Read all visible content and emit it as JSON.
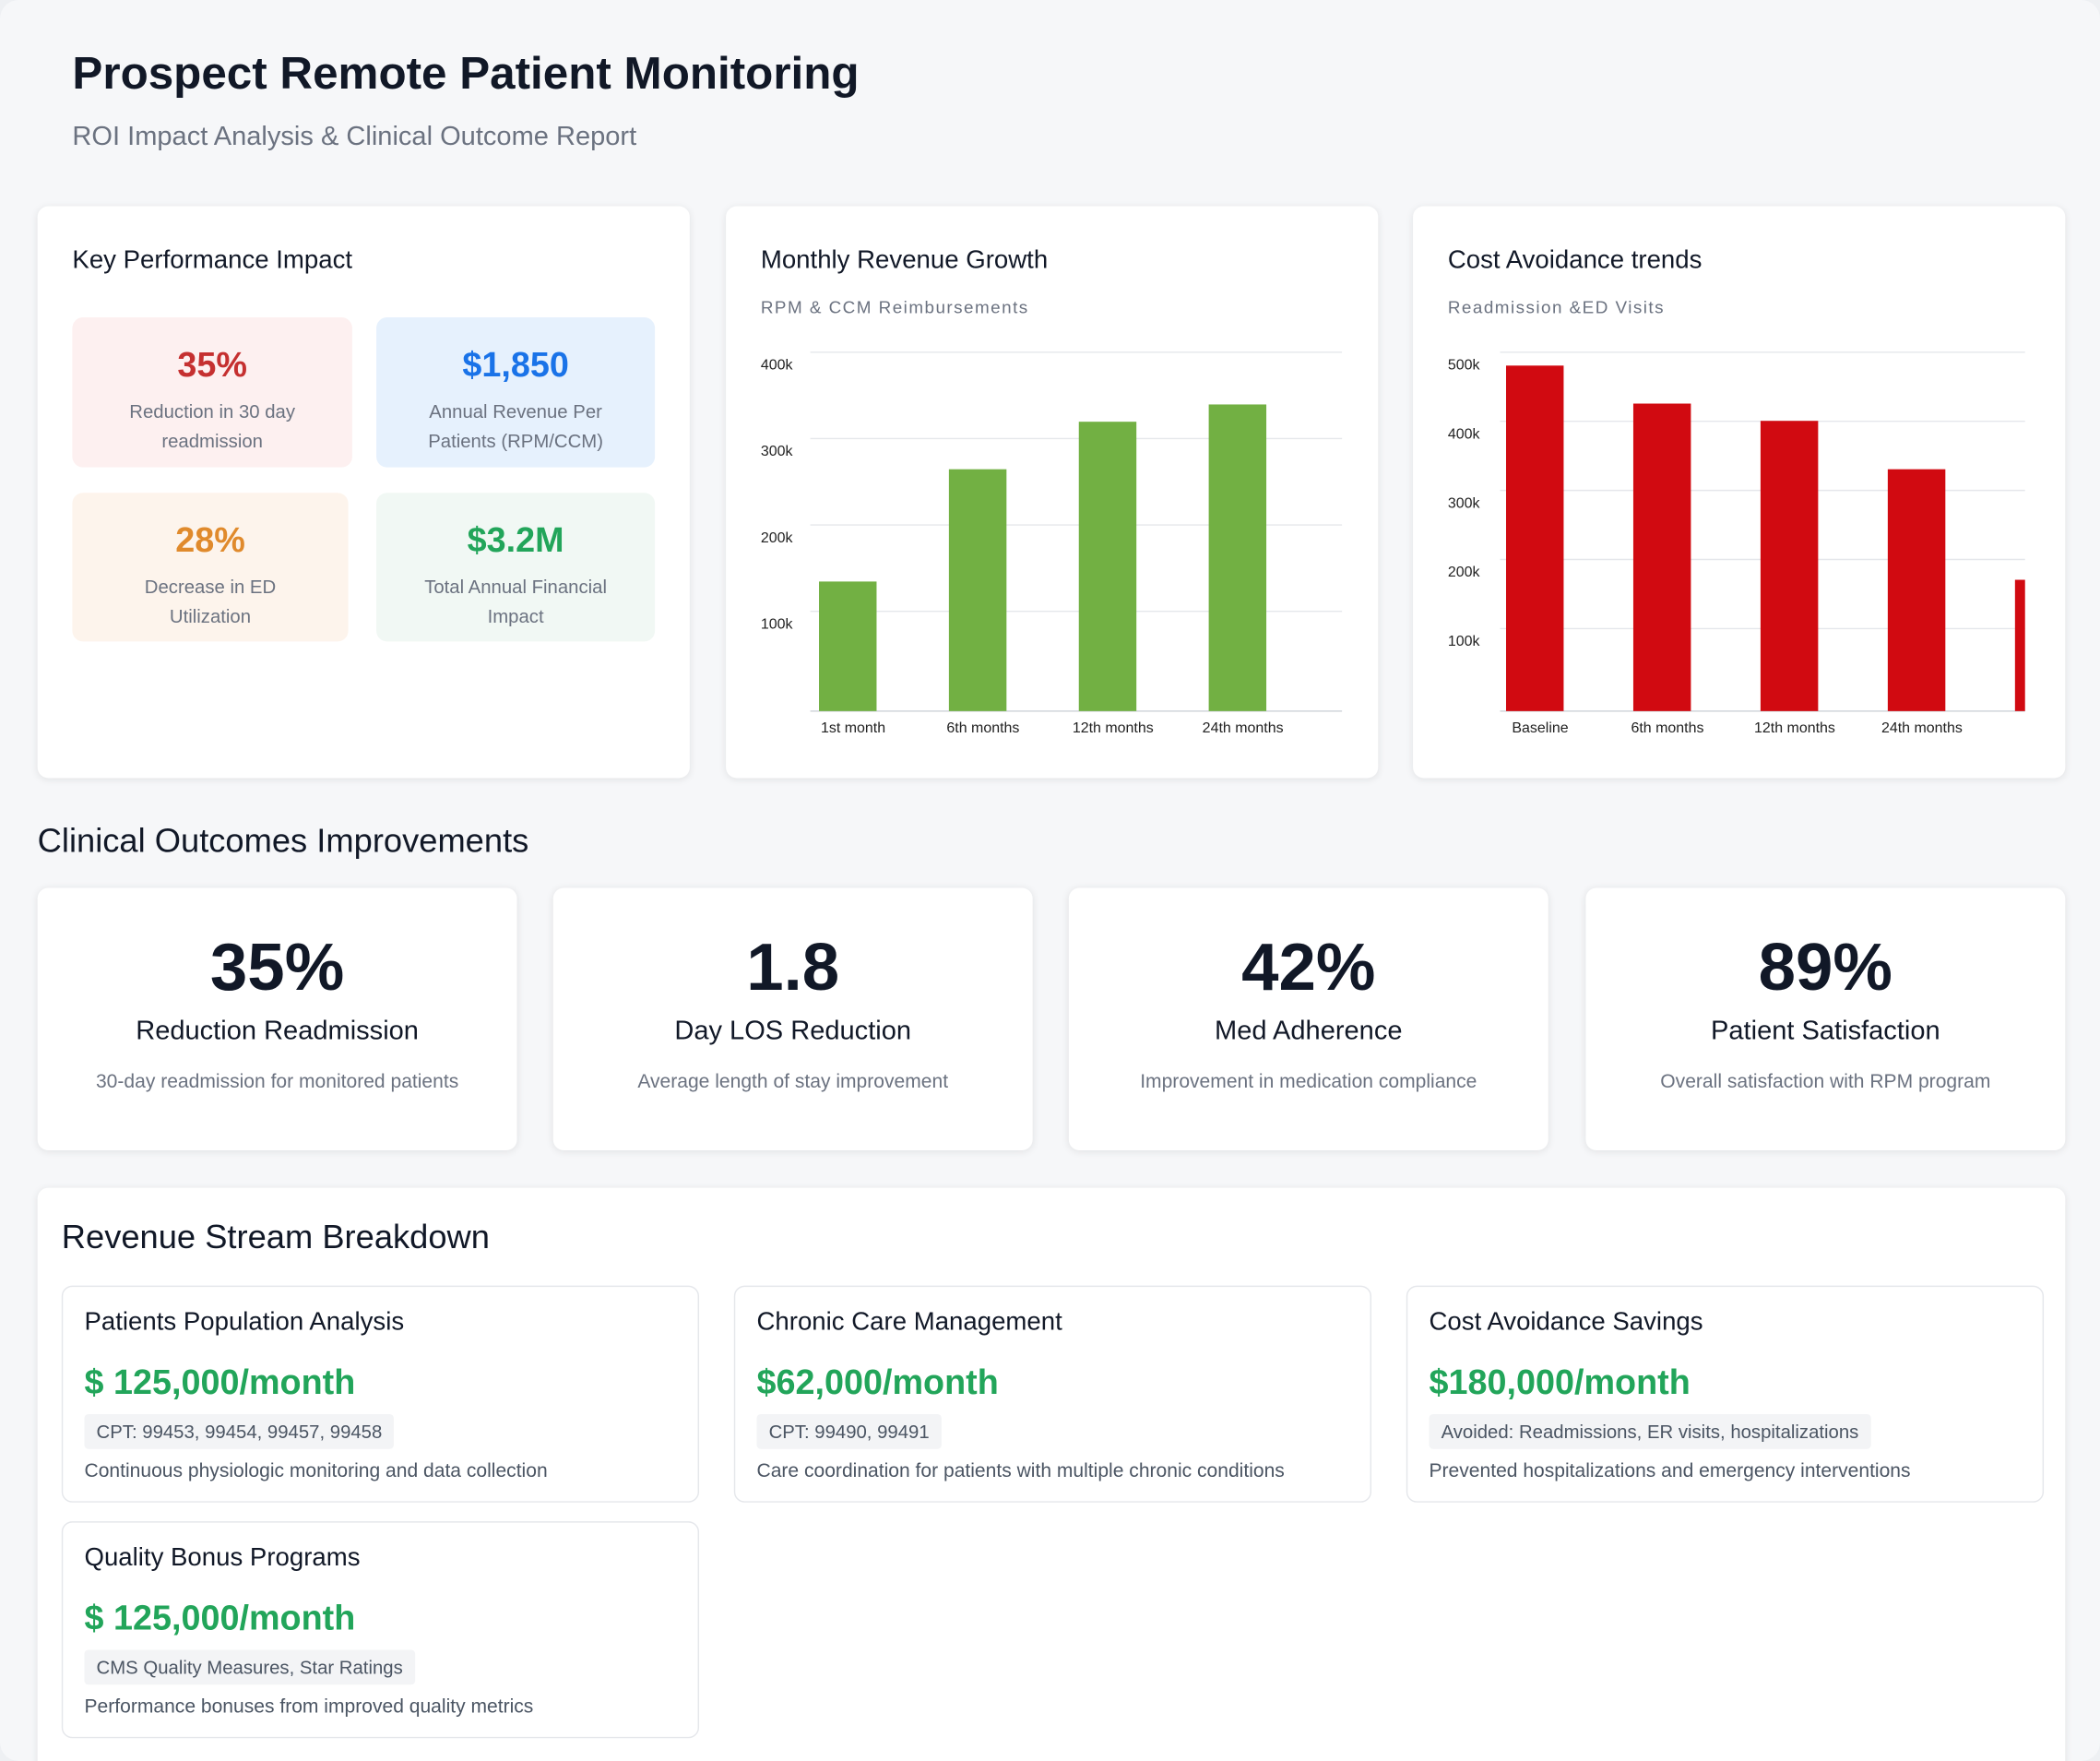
{
  "header": {
    "title": "Prospect Remote Patient Monitoring",
    "subtitle": "ROI Impact Analysis & Clinical Outcome Report"
  },
  "kpi": {
    "title": "Key Performance Impact",
    "tiles": [
      {
        "value": "35%",
        "label": "Reduction in 30 day readmission"
      },
      {
        "value": "$1,850",
        "label": "Annual Revenue Per Patients (RPM/CCM)"
      },
      {
        "value": "28%",
        "label": "Decrease in ED Utilization"
      },
      {
        "value": "$3.2M",
        "label": "Total Annual Financial Impact"
      }
    ]
  },
  "chart_data": [
    {
      "type": "bar",
      "title": "Monthly Revenue Growth",
      "subtitle": "RPM & CCM Reimbursements",
      "categories": [
        "1st month",
        "6th months",
        "12th months",
        "24th months"
      ],
      "values": [
        150000,
        280000,
        335000,
        355000
      ],
      "color": "#72b043",
      "ylim": [
        0,
        400000
      ],
      "yticks": [
        {
          "value": 100000,
          "label": "100k"
        },
        {
          "value": 200000,
          "label": "200k"
        },
        {
          "value": 300000,
          "label": "300k"
        },
        {
          "value": 400000,
          "label": "400k"
        }
      ],
      "grid": true
    },
    {
      "type": "bar",
      "title": "Cost Avoidance trends",
      "subtitle": "Readmission &ED Visits",
      "categories": [
        "Baseline",
        "6th months",
        "12th months",
        "24th months",
        null
      ],
      "values": [
        500000,
        445000,
        420000,
        350000,
        190000
      ],
      "color": "#d10a11",
      "ylim": [
        0,
        500000
      ],
      "yticks": [
        {
          "value": 100000,
          "label": "100k"
        },
        {
          "value": 200000,
          "label": "200k"
        },
        {
          "value": 300000,
          "label": "300k"
        },
        {
          "value": 400000,
          "label": "400k"
        },
        {
          "value": 500000,
          "label": "500k"
        }
      ],
      "grid": true
    }
  ],
  "clinical_outcomes": {
    "title": "Clinical Outcomes Improvements",
    "cards": [
      {
        "value": "35%",
        "label": "Reduction Readmission",
        "description": "30-day readmission for monitored patients"
      },
      {
        "value": "1.8",
        "label": "Day LOS Reduction",
        "description": "Average length of stay improvement"
      },
      {
        "value": "42%",
        "label": "Med Adherence",
        "description": "Improvement in medication compliance"
      },
      {
        "value": "89%",
        "label": "Patient Satisfaction",
        "description": "Overall satisfaction with RPM program"
      }
    ]
  },
  "revenue_streams": {
    "title": "Revenue Stream Breakdown",
    "cards": [
      {
        "title": "Patients Population Analysis",
        "amount": "$ 125,000/month",
        "tag": "CPT: 99453, 99454, 99457, 99458",
        "description": "Continuous physiologic monitoring and data collection"
      },
      {
        "title": "Chronic Care Management",
        "amount": "$62,000/month",
        "tag": "CPT: 99490, 99491",
        "description": "Care coordination for patients with multiple chronic conditions"
      },
      {
        "title": "Cost Avoidance Savings",
        "amount": "$180,000/month",
        "tag": "Avoided: Readmissions, ER visits, hospitalizations",
        "description": "Prevented hospitalizations and emergency interventions"
      },
      {
        "title": "Quality Bonus Programs",
        "amount": "$ 125,000/month",
        "tag": "CMS Quality Measures, Star Ratings",
        "description": "Performance bonuses from improved quality metrics"
      }
    ]
  }
}
